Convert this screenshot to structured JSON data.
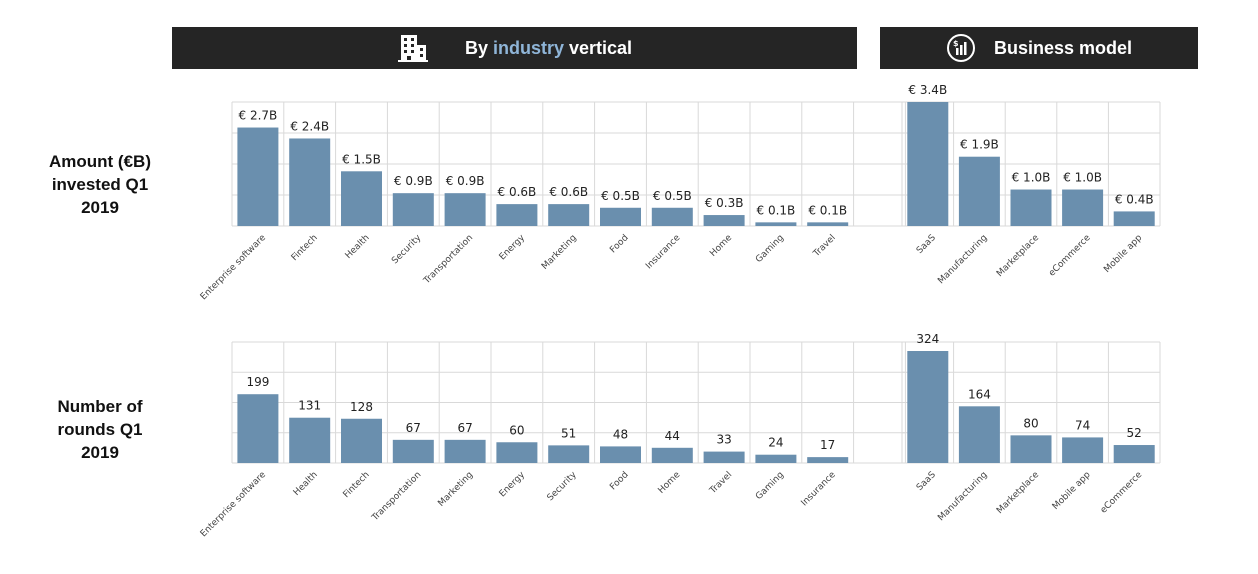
{
  "headers": {
    "industry": {
      "prefix": "By ",
      "highlight": "industry",
      "suffix": " vertical",
      "icon": "building-icon"
    },
    "business": {
      "label": "Business model",
      "icon": "money-chart-icon"
    }
  },
  "row_labels": {
    "amount": [
      "Amount (€B)",
      "invested Q1",
      "2019"
    ],
    "rounds": [
      "Number of",
      "rounds Q1",
      "2019"
    ]
  },
  "colors": {
    "bar": "#6a8fae",
    "grid": "#d9d9d9",
    "header_bg": "#252525",
    "highlight": "#8fb5d8"
  },
  "chart_data": [
    {
      "id": "amount-industry",
      "type": "bar",
      "ylim": [
        0,
        3.4
      ],
      "categories": [
        "Enterprise software",
        "Fintech",
        "Health",
        "Security",
        "Transportation",
        "Energy",
        "Marketing",
        "Food",
        "Insurance",
        "Home",
        "Gaming",
        "Travel"
      ],
      "values": [
        2.7,
        2.4,
        1.5,
        0.9,
        0.9,
        0.6,
        0.6,
        0.5,
        0.5,
        0.3,
        0.1,
        0.1
      ],
      "labels": [
        "€ 2.7B",
        "€ 2.4B",
        "€ 1.5B",
        "€ 0.9B",
        "€ 0.9B",
        "€ 0.6B",
        "€ 0.6B",
        "€ 0.5B",
        "€ 0.5B",
        "€ 0.3B",
        "€ 0.1B",
        "€ 0.1B"
      ]
    },
    {
      "id": "amount-business",
      "type": "bar",
      "ylim": [
        0,
        3.4
      ],
      "categories": [
        "SaaS",
        "Manufacturing",
        "Marketplace",
        "eCommerce",
        "Mobile app"
      ],
      "values": [
        3.4,
        1.9,
        1.0,
        1.0,
        0.4
      ],
      "labels": [
        "€ 3.4B",
        "€ 1.9B",
        "€ 1.0B",
        "€ 1.0B",
        "€ 0.4B"
      ]
    },
    {
      "id": "rounds-industry",
      "type": "bar",
      "ylim": [
        0,
        324
      ],
      "categories": [
        "Enterprise software",
        "Health",
        "Fintech",
        "Transportation",
        "Marketing",
        "Energy",
        "Security",
        "Food",
        "Home",
        "Travel",
        "Gaming",
        "Insurance"
      ],
      "values": [
        199,
        131,
        128,
        67,
        67,
        60,
        51,
        48,
        44,
        33,
        24,
        17
      ],
      "labels": [
        "199",
        "131",
        "128",
        "67",
        "67",
        "60",
        "51",
        "48",
        "44",
        "33",
        "24",
        "17"
      ]
    },
    {
      "id": "rounds-business",
      "type": "bar",
      "ylim": [
        0,
        324
      ],
      "categories": [
        "SaaS",
        "Manufacturing",
        "Marketplace",
        "Mobile app",
        "eCommerce"
      ],
      "values": [
        324,
        164,
        80,
        74,
        52
      ],
      "labels": [
        "324",
        "164",
        "80",
        "74",
        "52"
      ]
    }
  ]
}
